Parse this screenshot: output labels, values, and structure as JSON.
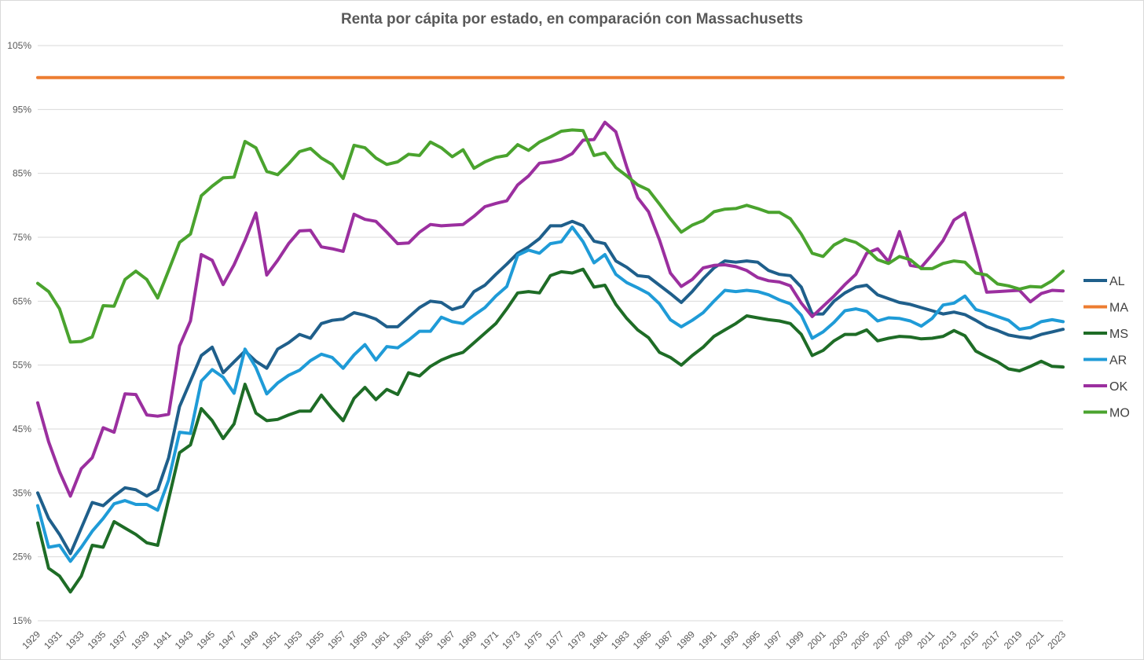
{
  "chart_data": {
    "type": "line",
    "title": "Renta por cápita por estado, en comparación  con Massachusetts",
    "xlabel": "",
    "ylabel": "",
    "x": [
      1929,
      1930,
      1931,
      1932,
      1933,
      1934,
      1935,
      1936,
      1937,
      1938,
      1939,
      1940,
      1941,
      1942,
      1943,
      1944,
      1945,
      1946,
      1947,
      1948,
      1949,
      1950,
      1951,
      1952,
      1953,
      1954,
      1955,
      1956,
      1957,
      1958,
      1959,
      1960,
      1961,
      1962,
      1963,
      1964,
      1965,
      1966,
      1967,
      1968,
      1969,
      1970,
      1971,
      1972,
      1973,
      1974,
      1975,
      1976,
      1977,
      1978,
      1979,
      1980,
      1981,
      1982,
      1983,
      1984,
      1985,
      1986,
      1987,
      1988,
      1989,
      1990,
      1991,
      1992,
      1993,
      1994,
      1995,
      1996,
      1997,
      1998,
      1999,
      2000,
      2001,
      2002,
      2003,
      2004,
      2005,
      2006,
      2007,
      2008,
      2009,
      2010,
      2011,
      2012,
      2013,
      2014,
      2015,
      2016,
      2017,
      2018,
      2019,
      2020,
      2021,
      2022,
      2023
    ],
    "x_tick_labels": [
      "1929",
      "1931",
      "1933",
      "1935",
      "1937",
      "1939",
      "1941",
      "1943",
      "1945",
      "1947",
      "1949",
      "1951",
      "1953",
      "1955",
      "1957",
      "1959",
      "1961",
      "1963",
      "1965",
      "1967",
      "1969",
      "1971",
      "1973",
      "1975",
      "1977",
      "1979",
      "1981",
      "1983",
      "1985",
      "1987",
      "1989",
      "1991",
      "1993",
      "1995",
      "1997",
      "1999",
      "2001",
      "2003",
      "2005",
      "2007",
      "2009",
      "2011",
      "2013",
      "2015",
      "2017",
      "2019",
      "2021",
      "2023"
    ],
    "y_tick_labels": [
      "15%",
      "25%",
      "35%",
      "45%",
      "55%",
      "65%",
      "75%",
      "85%",
      "95%",
      "105%"
    ],
    "ylim": [
      15,
      105
    ],
    "grid": true,
    "legend_position": "right",
    "series": [
      {
        "name": "AL",
        "color": "#1f5f8b",
        "values": [
          35,
          31,
          28.5,
          25.5,
          29.5,
          33.5,
          33,
          34.5,
          35.8,
          35.5,
          34.5,
          35.5,
          40.5,
          48.5,
          52.5,
          56.5,
          57.8,
          53.8,
          55.5,
          57.2,
          55.6,
          54.5,
          57.5,
          58.5,
          59.8,
          59.2,
          61.5,
          62,
          62.2,
          63.2,
          62.8,
          62.2,
          61,
          61,
          62.5,
          64,
          65,
          64.8,
          63.7,
          64.2,
          66.5,
          67.5,
          69.2,
          70.8,
          72.5,
          73.5,
          74.8,
          76.8,
          76.8,
          77.5,
          76.8,
          74.4,
          74,
          71.3,
          70.3,
          69,
          68.8,
          67.5,
          66.2,
          64.8,
          66.5,
          68.5,
          70.2,
          71.3,
          71.1,
          71.3,
          71.1,
          69.8,
          69.2,
          69,
          67.2,
          63,
          63,
          65,
          66.3,
          67.2,
          67.5,
          66,
          65.4,
          64.8,
          64.5,
          64,
          63.5,
          63,
          63.3,
          62.9,
          62,
          61,
          60.4,
          59.7,
          59.4,
          59.2,
          59.8,
          60.2,
          60.6
        ]
      },
      {
        "name": "MA",
        "color": "#ed7d31",
        "values": [
          100,
          100,
          100,
          100,
          100,
          100,
          100,
          100,
          100,
          100,
          100,
          100,
          100,
          100,
          100,
          100,
          100,
          100,
          100,
          100,
          100,
          100,
          100,
          100,
          100,
          100,
          100,
          100,
          100,
          100,
          100,
          100,
          100,
          100,
          100,
          100,
          100,
          100,
          100,
          100,
          100,
          100,
          100,
          100,
          100,
          100,
          100,
          100,
          100,
          100,
          100,
          100,
          100,
          100,
          100,
          100,
          100,
          100,
          100,
          100,
          100,
          100,
          100,
          100,
          100,
          100,
          100,
          100,
          100,
          100,
          100,
          100,
          100,
          100,
          100,
          100,
          100,
          100,
          100,
          100,
          100,
          100,
          100,
          100,
          100,
          100,
          100,
          100,
          100,
          100,
          100,
          100,
          100,
          100,
          100
        ]
      },
      {
        "name": "MS",
        "color": "#1e6c26",
        "values": [
          30.3,
          23.2,
          22,
          19.5,
          22,
          26.8,
          26.5,
          30.5,
          29.5,
          28.5,
          27.2,
          26.8,
          34,
          41.3,
          42.5,
          48.2,
          46.3,
          43.5,
          45.8,
          52,
          47.5,
          46.3,
          46.5,
          47.2,
          47.8,
          47.8,
          50.3,
          48.2,
          46.3,
          49.8,
          51.5,
          49.6,
          51.2,
          50.4,
          53.8,
          53.3,
          54.8,
          55.8,
          56.5,
          57,
          58.5,
          60,
          61.5,
          63.8,
          66.3,
          66.5,
          66.3,
          69,
          69.6,
          69.4,
          70,
          67.2,
          67.5,
          64.5,
          62.3,
          60.5,
          59.3,
          57,
          56.2,
          55,
          56.5,
          57.8,
          59.5,
          60.5,
          61.5,
          62.7,
          62.4,
          62.1,
          61.9,
          61.5,
          59.8,
          56.5,
          57.3,
          58.8,
          59.8,
          59.8,
          60.5,
          58.8,
          59.2,
          59.5,
          59.4,
          59.1,
          59.2,
          59.5,
          60.4,
          59.6,
          57.2,
          56.3,
          55.5,
          54.4,
          54.1,
          54.8,
          55.6,
          54.8,
          54.7
        ]
      },
      {
        "name": "AR",
        "color": "#1f9bd7",
        "values": [
          33,
          26.5,
          26.8,
          24.3,
          26.5,
          29,
          31,
          33.3,
          33.8,
          33.2,
          33.2,
          32.3,
          37,
          44.5,
          44.3,
          52.5,
          54.3,
          53.1,
          50.6,
          57.5,
          54.6,
          50.5,
          52.2,
          53.4,
          54.2,
          55.7,
          56.7,
          56.2,
          54.5,
          56.6,
          58.2,
          55.8,
          57.9,
          57.7,
          58.9,
          60.3,
          60.3,
          62.5,
          61.8,
          61.5,
          62.8,
          64,
          65.8,
          67.3,
          72.2,
          73,
          72.5,
          74,
          74.3,
          76.6,
          74.3,
          71,
          72.3,
          69.2,
          67.9,
          67.1,
          66.2,
          64.6,
          62.1,
          61,
          62,
          63.2,
          65,
          66.7,
          66.5,
          66.7,
          66.5,
          66,
          65.2,
          64.6,
          62.8,
          59.2,
          60.2,
          61.7,
          63.5,
          63.8,
          63.4,
          61.9,
          62.4,
          62.3,
          61.9,
          61.1,
          62.3,
          64.4,
          64.7,
          65.8,
          63.7,
          63.2,
          62.6,
          62,
          60.6,
          60.9,
          61.8,
          62.1,
          61.8
        ]
      },
      {
        "name": "OK",
        "color": "#9b2f9f",
        "values": [
          49.1,
          43,
          38.3,
          34.5,
          38.8,
          40.5,
          45.2,
          44.5,
          50.5,
          50.4,
          47.2,
          47,
          47.3,
          58,
          61.9,
          72.3,
          71.4,
          67.6,
          70.7,
          74.5,
          78.8,
          69.1,
          71.4,
          74,
          76,
          76.1,
          73.5,
          73.2,
          72.8,
          78.6,
          77.8,
          77.5,
          75.8,
          74,
          74.1,
          75.8,
          77,
          76.8,
          76.9,
          77,
          78.3,
          79.8,
          80.3,
          80.7,
          83.2,
          84.6,
          86.6,
          86.8,
          87.2,
          88.1,
          90.2,
          90.3,
          93,
          91.5,
          86,
          81.2,
          79,
          74.6,
          69.4,
          67.3,
          68.4,
          70.2,
          70.6,
          70.7,
          70.4,
          69.8,
          68.7,
          68.2,
          68,
          67.4,
          64.7,
          62.6,
          64.2,
          65.8,
          67.6,
          69.2,
          72.5,
          73.2,
          71.2,
          75.9,
          70.6,
          70.3,
          72.3,
          74.5,
          77.7,
          78.8,
          72.8,
          66.4,
          66.5,
          66.6,
          66.7,
          64.9,
          66.2,
          66.7,
          66.6
        ]
      },
      {
        "name": "MO",
        "color": "#4aa32e",
        "values": [
          67.8,
          66.5,
          63.8,
          58.6,
          58.7,
          59.4,
          64.3,
          64.2,
          68.4,
          69.7,
          68.4,
          65.5,
          69.8,
          74.2,
          75.5,
          81.5,
          83,
          84.3,
          84.4,
          90,
          89,
          85.3,
          84.8,
          86.5,
          88.4,
          88.9,
          87.4,
          86.4,
          84.2,
          89.4,
          89,
          87.4,
          86.4,
          86.8,
          88,
          87.8,
          89.9,
          89,
          87.6,
          88.7,
          85.8,
          86.8,
          87.5,
          87.8,
          89.5,
          88.6,
          89.9,
          90.7,
          91.6,
          91.8,
          91.7,
          87.8,
          88.2,
          85.9,
          84.6,
          83.2,
          82.4,
          80.2,
          77.9,
          75.8,
          76.9,
          77.6,
          79,
          79.4,
          79.5,
          80,
          79.5,
          78.9,
          78.9,
          77.9,
          75.5,
          72.5,
          72,
          73.8,
          74.7,
          74.2,
          73.1,
          71.5,
          70.9,
          72,
          71.5,
          70.1,
          70.1,
          70.9,
          71.3,
          71.1,
          69.4,
          69.1,
          67.7,
          67.4,
          66.9,
          67.3,
          67.2,
          68.2,
          69.7
        ]
      }
    ]
  }
}
